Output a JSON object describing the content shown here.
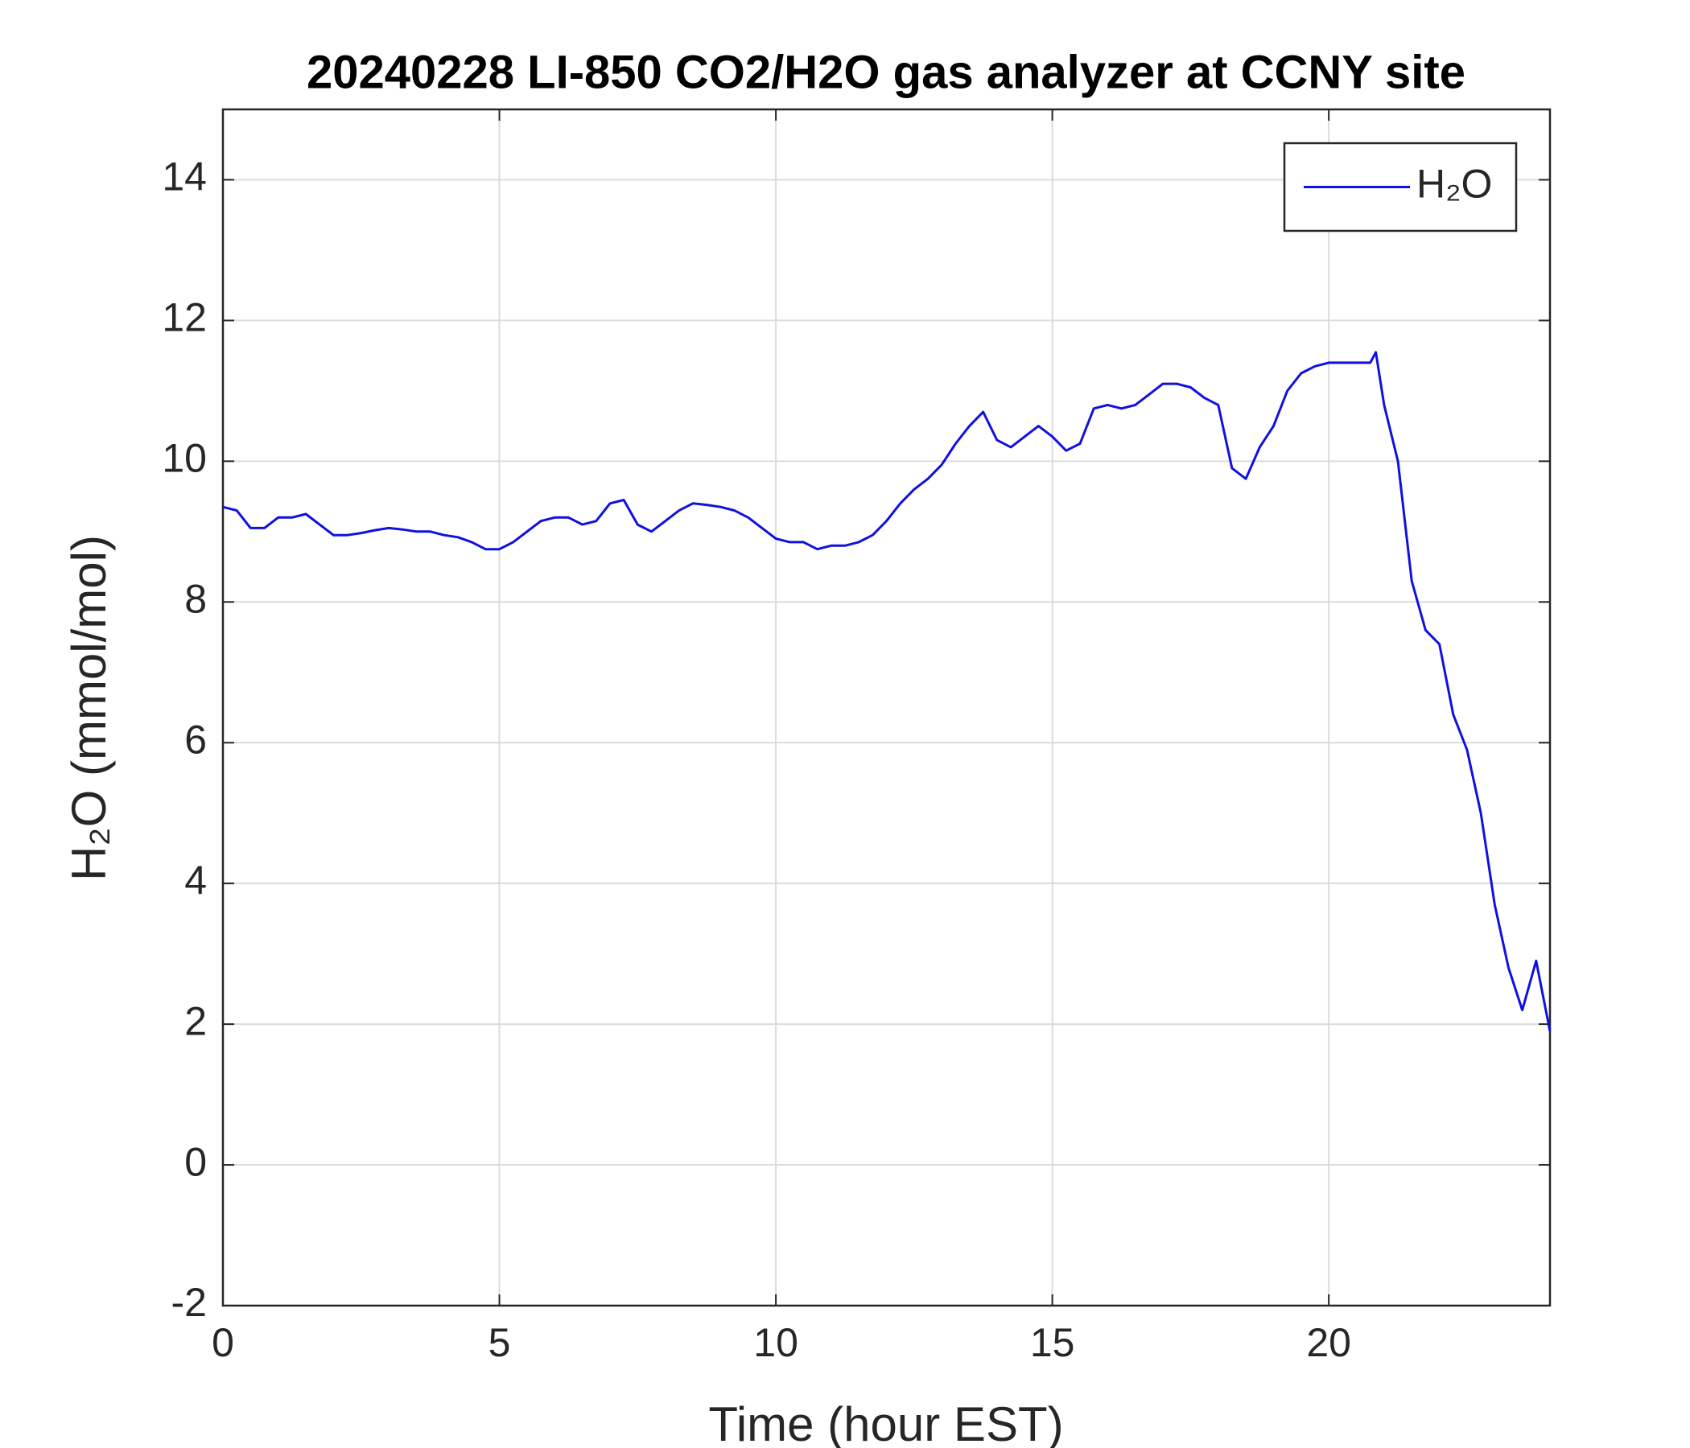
{
  "chart_data": {
    "type": "line",
    "title": "20240228 LI-850 CO2/H2O gas analyzer at CCNY site",
    "xlabel": "Time (hour EST)",
    "ylabel": "H₂O (mmol/mol)",
    "x": [
      0,
      0.25,
      0.5,
      0.75,
      1,
      1.25,
      1.5,
      1.75,
      2,
      2.25,
      2.5,
      2.75,
      3,
      3.25,
      3.5,
      3.75,
      4,
      4.25,
      4.5,
      4.75,
      5,
      5.25,
      5.5,
      5.75,
      6,
      6.25,
      6.5,
      6.75,
      7,
      7.25,
      7.5,
      7.75,
      8,
      8.25,
      8.5,
      8.75,
      9,
      9.25,
      9.5,
      9.75,
      10,
      10.25,
      10.5,
      10.75,
      11,
      11.25,
      11.5,
      11.75,
      12,
      12.25,
      12.5,
      12.75,
      13,
      13.25,
      13.5,
      13.75,
      14,
      14.25,
      14.5,
      14.75,
      15,
      15.25,
      15.5,
      15.75,
      16,
      16.25,
      16.5,
      16.75,
      17,
      17.25,
      17.5,
      17.75,
      18,
      18.25,
      18.5,
      18.75,
      19,
      19.25,
      19.5,
      19.75,
      20,
      20.25,
      20.5,
      20.75,
      20.85,
      21,
      21.25,
      21.5,
      21.75,
      22,
      22.25,
      22.5,
      22.75,
      23,
      23.25,
      23.5,
      23.75,
      24
    ],
    "series": [
      {
        "name": "H₂O",
        "color": "#1010e0",
        "values": [
          9.35,
          9.3,
          9.05,
          9.05,
          9.2,
          9.2,
          9.25,
          9.1,
          8.95,
          8.95,
          8.98,
          9.02,
          9.05,
          9.03,
          9.0,
          9.0,
          8.95,
          8.92,
          8.85,
          8.75,
          8.75,
          8.85,
          9.0,
          9.15,
          9.2,
          9.2,
          9.1,
          9.15,
          9.4,
          9.45,
          9.1,
          9.0,
          9.15,
          9.3,
          9.4,
          9.38,
          9.35,
          9.3,
          9.2,
          9.05,
          8.9,
          8.85,
          8.85,
          8.75,
          8.8,
          8.8,
          8.85,
          8.95,
          9.15,
          9.4,
          9.6,
          9.75,
          9.95,
          10.25,
          10.5,
          10.7,
          10.3,
          10.2,
          10.35,
          10.5,
          10.35,
          10.15,
          10.25,
          10.75,
          10.8,
          10.75,
          10.8,
          10.95,
          11.1,
          11.1,
          11.05,
          10.9,
          10.8,
          9.9,
          9.75,
          10.2,
          10.5,
          11.0,
          11.25,
          11.35,
          11.4,
          11.4,
          11.4,
          11.4,
          11.55,
          10.8,
          10.0,
          8.3,
          7.6,
          7.4,
          6.4,
          5.9,
          5.0,
          3.7,
          2.8,
          2.2,
          2.9,
          1.9
        ]
      }
    ],
    "xlim": [
      0,
      24
    ],
    "xticks": [
      0,
      5,
      10,
      15,
      20
    ],
    "ylim": [
      -2,
      15
    ],
    "yticks": [
      -2,
      0,
      2,
      4,
      6,
      8,
      10,
      12,
      14
    ],
    "grid": true,
    "legend": "top-right"
  }
}
